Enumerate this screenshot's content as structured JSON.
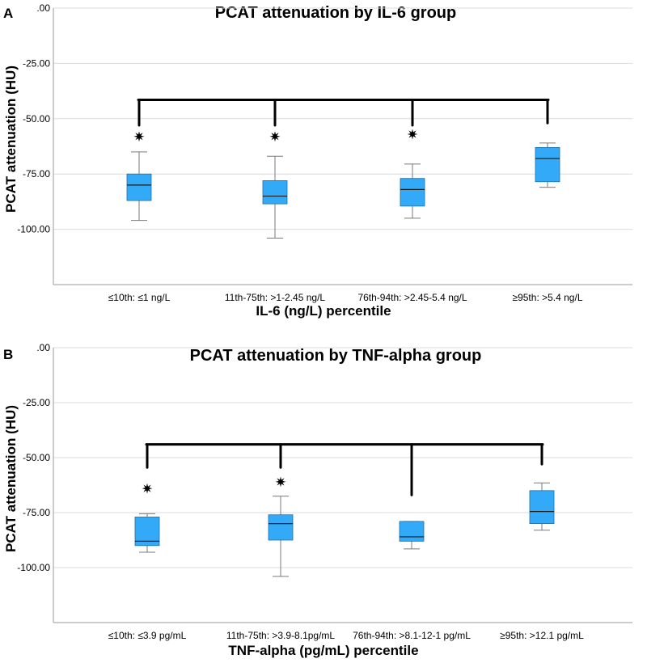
{
  "colors": {
    "box_fill": "#33aaf7",
    "box_stroke": "#1f6fa8",
    "whisker": "#7a7a7a",
    "bracket": "#000000",
    "grid": "#dcdcdc",
    "axis": "#999999",
    "text": "#000000"
  },
  "chart_data": [
    {
      "panel_label": "A",
      "type": "box",
      "title": "PCAT attenuation by IL-6 group",
      "xlabel": "IL-6 (ng/L) percentile",
      "ylabel": "PCAT attenuation (HU)",
      "ylim": [
        -125,
        0
      ],
      "yticks": [
        0,
        -25,
        -50,
        -75,
        -100
      ],
      "ytick_labels": [
        ".00",
        "-25.00",
        "-50.00",
        "-75.00",
        "-100.00"
      ],
      "grid": true,
      "categories": [
        "≤10th: ≤1 ng/L",
        "11th-75th: >1-2.45 ng/L",
        "76th-94th: >2.45-5.4 ng/L",
        "≥95th: >5.4 ng/L"
      ],
      "boxes": [
        {
          "whisker_low": -96,
          "q1": -87,
          "median": -80,
          "q3": -75,
          "whisker_high": -65
        },
        {
          "whisker_low": -104,
          "q1": -88.5,
          "median": -85,
          "q3": -78,
          "whisker_high": -67
        },
        {
          "whisker_low": -95,
          "q1": -89.5,
          "median": -82,
          "q3": -77,
          "whisker_high": -70.5
        },
        {
          "whisker_low": -81,
          "q1": -78.5,
          "median": -68,
          "q3": -63,
          "whisker_high": -61
        }
      ],
      "significance": {
        "bracket_y": -41.5,
        "drop_to": [
          -53,
          -53,
          -53,
          -52
        ],
        "markers": [
          -58,
          -58,
          -57,
          null
        ]
      }
    },
    {
      "panel_label": "B",
      "type": "box",
      "title": "PCAT attenuation by TNF-alpha group",
      "xlabel": "TNF-alpha (pg/mL) percentile",
      "ylabel": "PCAT attenuation (HU)",
      "ylim": [
        -125,
        0
      ],
      "yticks": [
        0,
        -25,
        -50,
        -75,
        -100
      ],
      "ytick_labels": [
        ".00",
        "-25.00",
        "-50.00",
        "-75.00",
        "-100.00"
      ],
      "grid": true,
      "categories": [
        "≤10th: ≤3.9 pg/mL",
        "11th-75th: >3.9-8.1pg/mL",
        "76th-94th: >8.1-12-1 pg/mL",
        "≥95th: >12.1 pg/mL"
      ],
      "boxes": [
        {
          "whisker_low": -93,
          "q1": -90,
          "median": -88,
          "q3": -77,
          "whisker_high": -75.5
        },
        {
          "whisker_low": -104,
          "q1": -87.5,
          "median": -80,
          "q3": -76,
          "whisker_high": -67.5
        },
        {
          "whisker_low": -91.5,
          "q1": -88,
          "median": -86,
          "q3": -79,
          "whisker_high": -79
        },
        {
          "whisker_low": -83,
          "q1": -80,
          "median": -74.5,
          "q3": -65,
          "whisker_high": -61.5
        }
      ],
      "significance": {
        "bracket_y": -44,
        "drop_to": [
          -54.5,
          -54.5,
          -67,
          -53
        ],
        "markers": [
          -64,
          -61,
          null,
          null
        ]
      }
    }
  ]
}
